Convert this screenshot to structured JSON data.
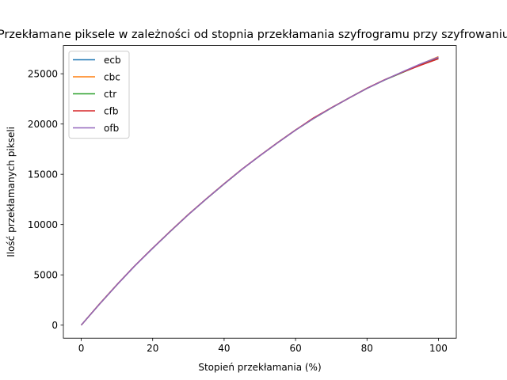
{
  "chart_data": {
    "type": "line",
    "title": "Przekłamane piksele w zależności od stopnia przekłamania szyfrogramu przy szyfrowaniu",
    "xlabel": "Stopień przekłamania (%)",
    "ylabel": "Ilość przekłamanych pikseli",
    "xlim": [
      -5,
      105
    ],
    "ylim": [
      -1300,
      27800
    ],
    "xticks": [
      0,
      20,
      40,
      60,
      80,
      100
    ],
    "yticks": [
      0,
      5000,
      10000,
      15000,
      20000,
      25000
    ],
    "grid": false,
    "legend_position": "top-left",
    "x": [
      0,
      5,
      10,
      15,
      20,
      25,
      30,
      35,
      40,
      45,
      50,
      55,
      60,
      65,
      70,
      75,
      80,
      85,
      90,
      95,
      100
    ],
    "series": [
      {
        "name": "ecb",
        "color": "#1f77b4",
        "values": [
          0,
          2050,
          4020,
          5900,
          7650,
          9350,
          11000,
          12550,
          14050,
          15500,
          16850,
          18150,
          19400,
          20550,
          21600,
          22600,
          23550,
          24400,
          25150,
          25900,
          26550
        ]
      },
      {
        "name": "cbc",
        "color": "#ff7f0e",
        "values": [
          0,
          2060,
          4030,
          5910,
          7660,
          9360,
          11010,
          12560,
          14060,
          15510,
          16860,
          18160,
          19410,
          20560,
          21610,
          22610,
          23560,
          24410,
          25160,
          25950,
          26700
        ]
      },
      {
        "name": "ctr",
        "color": "#2ca02c",
        "values": [
          0,
          2040,
          4010,
          5890,
          7640,
          9340,
          10990,
          12540,
          14040,
          15490,
          16840,
          18140,
          19390,
          20540,
          21590,
          22590,
          23540,
          24390,
          25140,
          25880,
          26500
        ]
      },
      {
        "name": "cfb",
        "color": "#d62728",
        "values": [
          0,
          2055,
          4025,
          5905,
          7655,
          9355,
          11005,
          12555,
          14055,
          15505,
          16855,
          18155,
          19405,
          20600,
          21620,
          22580,
          23560,
          24420,
          25170,
          25850,
          26500
        ]
      },
      {
        "name": "ofb",
        "color": "#9467bd",
        "values": [
          0,
          2045,
          4015,
          5895,
          7645,
          9345,
          10995,
          12545,
          14045,
          15495,
          16845,
          18145,
          19395,
          20545,
          21595,
          22595,
          23545,
          24395,
          25200,
          25980,
          26650
        ]
      }
    ]
  }
}
